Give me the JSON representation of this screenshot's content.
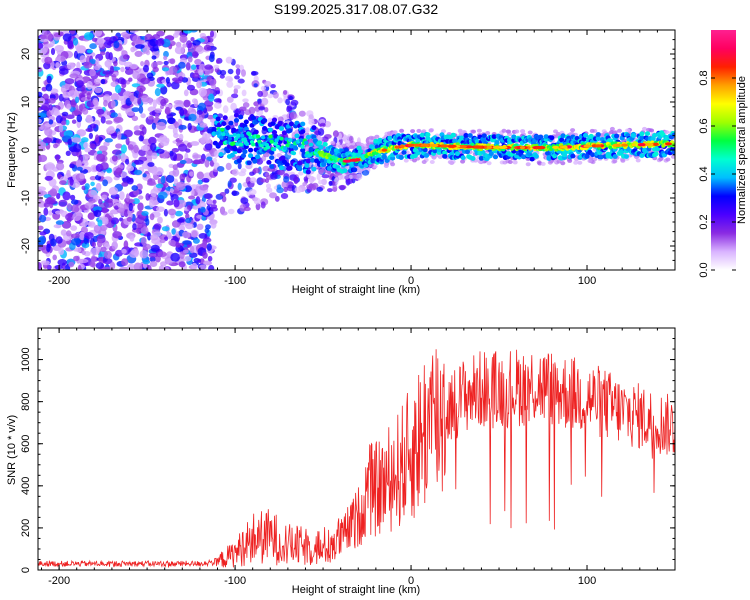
{
  "chart_data": [
    {
      "type": "heatmap",
      "title": "S199.2025.317.08.07.G32",
      "xlabel": "Height of straight line (km)",
      "ylabel": "Frequency (Hz)",
      "xlim": [
        -212,
        150
      ],
      "ylim": [
        -25,
        25
      ],
      "x_ticks": [
        -200,
        -100,
        0,
        100
      ],
      "x_tick_labels": [
        "-200",
        "-100",
        "0",
        "100"
      ],
      "y_ticks": [
        -20,
        -10,
        0,
        10,
        20
      ],
      "y_tick_labels": [
        "-20",
        "-10",
        "0",
        "10",
        "20"
      ],
      "ridge": {
        "x": [
          -110,
          -100,
          -90,
          -80,
          -70,
          -60,
          -50,
          -40,
          -30,
          -20,
          -10,
          0,
          10,
          20,
          40,
          60,
          80,
          100,
          120,
          140,
          150
        ],
        "y": [
          3,
          2.5,
          2,
          1.5,
          1,
          0.5,
          -1,
          -2.5,
          -2,
          -0.5,
          0.5,
          1,
          1,
          0.8,
          0.6,
          0.5,
          0.5,
          0.8,
          1.0,
          1.2,
          1.3
        ]
      },
      "colorbar": {
        "label": "Normalized spectral amplitude",
        "range": [
          0,
          1
        ],
        "ticks": [
          0.0,
          0.2,
          0.4,
          0.6,
          0.8
        ],
        "tick_labels": [
          "0.0",
          "0.2",
          "0.4",
          "0.6",
          "0.8"
        ],
        "colors": [
          "#ffffff",
          "#d9b3ff",
          "#8a2be2",
          "#4b00ff",
          "#0000ff",
          "#00bfff",
          "#00ffd0",
          "#00ff40",
          "#a0ff00",
          "#ffff00",
          "#ffa000",
          "#ff2000",
          "#ff0060",
          "#ff2090"
        ]
      }
    },
    {
      "type": "line",
      "xlabel": "Height of straight line (km)",
      "ylabel": "SNR (10 * v/v)",
      "xlim": [
        -212,
        150
      ],
      "ylim": [
        0,
        1150
      ],
      "x_ticks": [
        -200,
        -100,
        0,
        100
      ],
      "x_tick_labels": [
        "-200",
        "-100",
        "0",
        "100"
      ],
      "y_ticks": [
        0,
        200,
        400,
        600,
        800,
        1000
      ],
      "y_tick_labels": [
        "0",
        "200",
        "400",
        "600",
        "800",
        "1000"
      ],
      "color": "#ee2222",
      "envelope": {
        "x": [
          -212,
          -150,
          -120,
          -110,
          -100,
          -90,
          -80,
          -70,
          -60,
          -50,
          -40,
          -30,
          -25,
          -20,
          -10,
          0,
          10,
          20,
          30,
          40,
          50,
          60,
          70,
          80,
          90,
          100,
          110,
          120,
          130,
          140,
          150
        ],
        "y": [
          30,
          30,
          30,
          40,
          80,
          150,
          160,
          120,
          110,
          110,
          150,
          250,
          380,
          380,
          450,
          550,
          700,
          760,
          830,
          860,
          860,
          870,
          880,
          860,
          840,
          820,
          790,
          750,
          730,
          700,
          680
        ]
      }
    }
  ]
}
